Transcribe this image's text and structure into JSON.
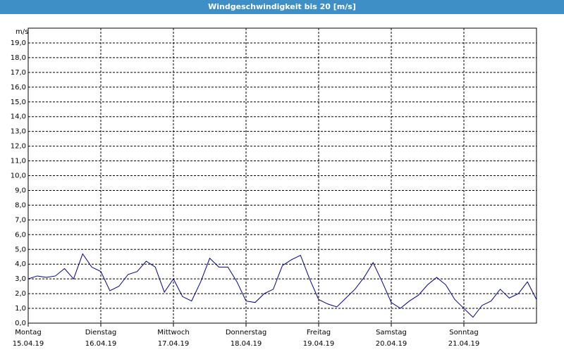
{
  "chart_data": {
    "type": "line",
    "title": "Windgeschwindigkeit bis 20 [m/s]",
    "y_label": "m/s",
    "days": [
      {
        "name": "Montag",
        "date": "15.04.19"
      },
      {
        "name": "Dienstag",
        "date": "16.04.19"
      },
      {
        "name": "Mittwoch",
        "date": "17.04.19"
      },
      {
        "name": "Donnerstag",
        "date": "18.04.19"
      },
      {
        "name": "Freitag",
        "date": "19.04.19"
      },
      {
        "name": "Samstag",
        "date": "20.04.19"
      },
      {
        "name": "Sonntag",
        "date": "21.04.19"
      }
    ],
    "color": "#00008b",
    "grid": true,
    "ylim": [
      0,
      20
    ],
    "yticks": [
      {
        "value": 0,
        "label": "0,0"
      },
      {
        "value": 1,
        "label": "1,0"
      },
      {
        "value": 2,
        "label": "2,0"
      },
      {
        "value": 3,
        "label": "3,0"
      },
      {
        "value": 4,
        "label": "4,0"
      },
      {
        "value": 5,
        "label": "5,0"
      },
      {
        "value": 6,
        "label": "6,0"
      },
      {
        "value": 7,
        "label": "7,0"
      },
      {
        "value": 8,
        "label": "8,0"
      },
      {
        "value": 9,
        "label": "9,0"
      },
      {
        "value": 10,
        "label": "10,0"
      },
      {
        "value": 11,
        "label": "11,0"
      },
      {
        "value": 12,
        "label": "12,0"
      },
      {
        "value": 13,
        "label": "13,0"
      },
      {
        "value": 14,
        "label": "14,0"
      },
      {
        "value": 15,
        "label": "15,0"
      },
      {
        "value": 16,
        "label": "16,0"
      },
      {
        "value": 17,
        "label": "17,0"
      },
      {
        "value": 18,
        "label": "18,0"
      },
      {
        "value": 19,
        "label": "19,0"
      }
    ],
    "values": [
      3.0,
      3.2,
      3.1,
      3.2,
      3.7,
      3.0,
      4.7,
      3.8,
      3.5,
      2.2,
      2.5,
      3.3,
      3.5,
      4.2,
      3.8,
      2.1,
      3.0,
      1.8,
      1.5,
      2.8,
      4.4,
      3.8,
      3.8,
      2.8,
      1.5,
      1.4,
      2.0,
      2.3,
      3.9,
      4.3,
      4.6,
      3.0,
      1.6,
      1.3,
      1.1,
      1.7,
      2.3,
      3.1,
      4.1,
      2.8,
      1.4,
      1.0,
      1.5,
      1.9,
      2.6,
      3.1,
      2.6,
      1.6,
      1.0,
      0.4,
      1.2,
      1.5,
      2.3,
      1.7,
      2.0,
      2.8,
      1.6
    ]
  }
}
